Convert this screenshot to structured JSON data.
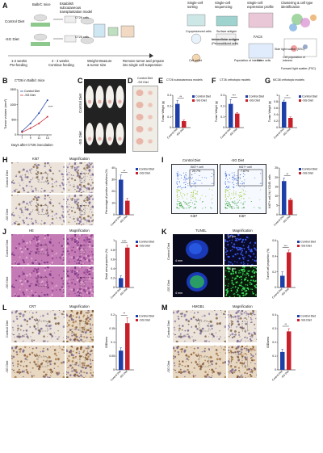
{
  "colors": {
    "control": "#1f3fa8",
    "sg": "#c8202a",
    "he_bg": "#c47ab4",
    "ihc_bg": "#e8e2dc",
    "tunel_bg": "#0a0a1e"
  },
  "panelA": {
    "label": "A",
    "groups": [
      "Control Diet",
      "-SG Diet"
    ],
    "mouse_label": "Balb/C mice",
    "step1": "Establish subcutaneous transplantation model",
    "ct26_cells": [
      "CT26 cells",
      "CT26 cells"
    ],
    "sc_title": "Single-cell sorting",
    "seq_title": "Single-cell sequencing",
    "expr_title": "Single-cell expression profile",
    "clust_title": "Clustering & cell type identification",
    "cryo": "Cryopreserved cells",
    "surf": "Surface antigen",
    "intra": "Intracellular antigen",
    "permeab": "(Permeabilized cells)",
    "facs": "FACS",
    "pop": "Cell population of interest",
    "cellpellet": "Cell pellet",
    "ssc": "Side light scatter (SSC)",
    "fsc": "Forward light scatter (FSC)",
    "pop_interest": "Population of interest",
    "other": "Other cells",
    "timeline": [
      "1-2 weeks",
      "Pre-feeding",
      "2 - 3 weeks",
      "Continue feeding",
      "Weight Measure",
      "& tumor size",
      "Remove tumor and prepare",
      "into single cell suspension"
    ]
  },
  "panelB": {
    "label": "B",
    "title": "CT26 in Balb/c mice",
    "xlabel": "Days after CT26 inoculation",
    "ylabel": "Tumor volume (mm³)",
    "legend": [
      "Control Diet",
      "-SG Diet"
    ],
    "sig": "****"
  },
  "panelC": {
    "label": "C",
    "rows": [
      "Control Diet",
      "-SG Diet"
    ]
  },
  "panelD": {
    "label": "D",
    "cols": [
      "Control Diet",
      "-SG Diet"
    ]
  },
  "panelE": {
    "label": "E",
    "title": "CT26 subcutaneous models",
    "ylabel": "Tumor Weight (g)",
    "sig": "**",
    "legend": [
      "Control Diet",
      "-SG Diet"
    ]
  },
  "panelF": {
    "label": "F",
    "title": "CT26 orthotopic models",
    "ylabel": "Tumor Weight (g)",
    "sig": "***",
    "legend": [
      "Control Diet",
      "-SG Diet"
    ]
  },
  "panelG": {
    "label": "G",
    "title": "MC38 orthotopic models",
    "ylabel": "Tumor Weight (g)",
    "sig": "**",
    "legend": [
      "Control Diet",
      "-SG Diet"
    ]
  },
  "panelH": {
    "label": "H",
    "stain": "Ki67",
    "mag": "Magnification",
    "rows": [
      "Control Diet",
      "-SG Diet"
    ],
    "ylabel": "Percentage of positive cells/view (%)",
    "sig": "**",
    "legend": [
      "Control Diet",
      "-SG Diet"
    ],
    "scale": "100μm"
  },
  "panelI": {
    "label": "I",
    "groups": [
      "Control Diet",
      "-SG Diet"
    ],
    "gate": "Ki67+ cell",
    "pct": [
      "20.7%",
      "7.87%"
    ],
    "xlabel": "Ki67",
    "ylabel": "Ki67+ cell (%) / CD45- cells",
    "sig": "**",
    "legend": [
      "Control Diet",
      "-SG Diet"
    ]
  },
  "panelJ": {
    "label": "J",
    "stain": "HE",
    "mag": "Magnification",
    "rows": [
      "Control Diet",
      "-SG Diet"
    ],
    "ylabel": "Dead area proportion (%)",
    "sig": "****",
    "legend": [
      "Control Diet",
      "-SG Diet"
    ],
    "scale": "100μm"
  },
  "panelK": {
    "label": "K",
    "stain": "TUNEL",
    "mag": "Magnification",
    "rows": [
      "Control Diet",
      "-SG Diet"
    ],
    "ylabel": "Tunnel cell proportion (%)",
    "sig": "***",
    "legend": [
      "Control Diet",
      "-SG Diet"
    ],
    "scale_big": "4 mm",
    "scale_small": "50 μm"
  },
  "panelL": {
    "label": "L",
    "stain": "CRT",
    "mag": "Magnification",
    "rows": [
      "Control Diet",
      "-SG Diet"
    ],
    "ylabel": "IOD/area",
    "sig": "**",
    "legend": [
      "Control Diet",
      "-SG Diet"
    ],
    "scale": "100μm"
  },
  "panelM": {
    "label": "M",
    "stain": "HMGB1",
    "mag": "Magnification",
    "rows": [
      "Control Diet",
      "-SG Diet"
    ],
    "ylabel": "IOD/area",
    "sig": "**",
    "legend": [
      "Control Diet",
      "-SG Diet"
    ],
    "scale": "100μm"
  },
  "chart_data": [
    {
      "id": "B",
      "type": "line",
      "title": "CT26 in Balb/c mice",
      "xlabel": "Days after CT26 inoculation",
      "ylabel": "Tumor volume (mm³)",
      "x": [
        7,
        9,
        11,
        13
      ],
      "xlim": [
        6,
        14
      ],
      "ylim": [
        0,
        1500
      ],
      "yticks": [
        0,
        500,
        1000,
        1500
      ],
      "series": [
        {
          "name": "Control Diet",
          "values": [
            120,
            380,
            720,
            1150
          ]
        },
        {
          "name": "-SG Diet",
          "values": [
            90,
            220,
            380,
            600
          ]
        }
      ]
    },
    {
      "id": "E",
      "type": "bar",
      "title": "CT26 subcutaneous models",
      "ylabel": "Tumor Weight (g)",
      "categories": [
        "Control Diet",
        "-SG Diet"
      ],
      "values": [
        0.22,
        0.06
      ],
      "errors": [
        0.03,
        0.01
      ],
      "ylim": [
        0,
        0.3
      ],
      "yticks": [
        0,
        0.1,
        0.2,
        0.3
      ]
    },
    {
      "id": "F",
      "type": "bar",
      "title": "CT26 orthotopic models",
      "ylabel": "Tumor Weight (g)",
      "categories": [
        "Control Diet",
        "-SG Diet"
      ],
      "values": [
        0.22,
        0.13
      ],
      "errors": [
        0.04,
        0.01
      ],
      "ylim": [
        0,
        0.3
      ],
      "yticks": [
        0,
        0.1,
        0.2,
        0.3
      ]
    },
    {
      "id": "G",
      "type": "bar",
      "title": "MC38 orthotopic models",
      "ylabel": "Tumor Weight (g)",
      "categories": [
        "Control Diet",
        "-SG Diet"
      ],
      "values": [
        0.8,
        0.3
      ],
      "errors": [
        0.05,
        0.03
      ],
      "ylim": [
        0,
        1.0
      ],
      "yticks": [
        0,
        0.2,
        0.4,
        0.6,
        0.8,
        1.0
      ]
    },
    {
      "id": "H",
      "type": "bar",
      "ylabel": "Percentage of positive cells/view (%)",
      "categories": [
        "Control Diet",
        "-SG Diet"
      ],
      "values": [
        30,
        12
      ],
      "errors": [
        4,
        2
      ],
      "ylim": [
        0,
        40
      ],
      "yticks": [
        0,
        10,
        20,
        30,
        40
      ]
    },
    {
      "id": "I",
      "type": "bar",
      "ylabel": "Ki67+ cell (%) / CD45- cells",
      "categories": [
        "Control Diet",
        "-SG Diet"
      ],
      "values": [
        18,
        8
      ],
      "errors": [
        1.5,
        0.8
      ],
      "ylim": [
        0,
        25
      ],
      "yticks": [
        0,
        5,
        10,
        15,
        20,
        25
      ]
    },
    {
      "id": "J",
      "type": "bar",
      "ylabel": "Dead area proportion (%)",
      "categories": [
        "Control Diet",
        "-SG Diet"
      ],
      "values": [
        0.2,
        0.85
      ],
      "errors": [
        0.05,
        0.05
      ],
      "ylim": [
        0,
        1.0
      ],
      "yticks": [
        0,
        0.2,
        0.4,
        0.6,
        0.8,
        1.0
      ]
    },
    {
      "id": "K",
      "type": "bar",
      "ylabel": "Tunnel cell proportion (%)",
      "categories": [
        "Control Diet",
        "-SG Diet"
      ],
      "values": [
        0.15,
        0.45
      ],
      "errors": [
        0.05,
        0.03
      ],
      "ylim": [
        0,
        0.6
      ],
      "yticks": [
        0,
        0.2,
        0.4,
        0.6
      ]
    },
    {
      "id": "L",
      "type": "bar",
      "ylabel": "IOD/area",
      "categories": [
        "Control Diet",
        "-SG Diet"
      ],
      "values": [
        0.07,
        0.17
      ],
      "errors": [
        0.01,
        0.02
      ],
      "ylim": [
        0,
        0.2
      ],
      "yticks": [
        0,
        0.05,
        0.1,
        0.15,
        0.2
      ]
    },
    {
      "id": "M",
      "type": "bar",
      "ylabel": "IOD/area",
      "categories": [
        "Control Diet",
        "-SG Diet"
      ],
      "values": [
        0.13,
        0.28
      ],
      "errors": [
        0.02,
        0.02
      ],
      "ylim": [
        0,
        0.4
      ],
      "yticks": [
        0,
        0.1,
        0.2,
        0.3,
        0.4
      ]
    }
  ]
}
